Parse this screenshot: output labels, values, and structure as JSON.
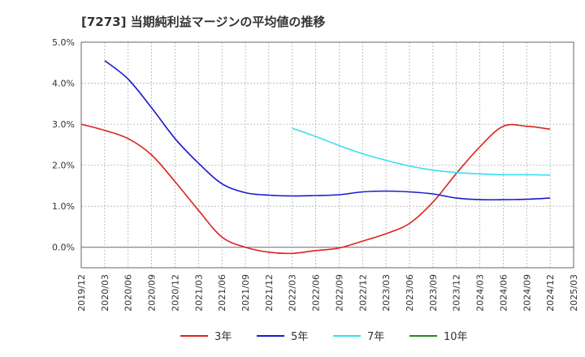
{
  "chart_data": {
    "type": "line",
    "title": "[7273]  当期純利益マージンの平均値の推移",
    "xlabel": "",
    "ylabel": "",
    "ylim": [
      -0.5,
      5.0
    ],
    "yticks": [
      0.0,
      1.0,
      2.0,
      3.0,
      4.0,
      5.0
    ],
    "ytick_labels": [
      "0.0%",
      "1.0%",
      "2.0%",
      "3.0%",
      "4.0%",
      "5.0%"
    ],
    "x_labels": [
      "2019/12",
      "2020/03",
      "2020/06",
      "2020/09",
      "2020/12",
      "2021/03",
      "2021/06",
      "2021/09",
      "2021/12",
      "2022/03",
      "2022/06",
      "2022/09",
      "2022/12",
      "2023/03",
      "2023/06",
      "2023/09",
      "2023/12",
      "2024/03",
      "2024/06",
      "2024/09",
      "2024/12",
      "2025/03"
    ],
    "grid": true,
    "legend_position": "bottom",
    "series": [
      {
        "name": "3年",
        "color": "#dd2222",
        "values": [
          3.0,
          2.85,
          2.65,
          2.25,
          1.6,
          0.9,
          0.25,
          0.0,
          -0.12,
          -0.15,
          -0.08,
          -0.02,
          0.15,
          0.33,
          0.58,
          1.1,
          1.8,
          2.45,
          2.95,
          2.95,
          2.88,
          null
        ]
      },
      {
        "name": "5年",
        "color": "#1a1acc",
        "values": [
          null,
          4.55,
          4.1,
          3.4,
          2.65,
          2.05,
          1.55,
          1.33,
          1.27,
          1.25,
          1.26,
          1.28,
          1.35,
          1.37,
          1.35,
          1.3,
          1.2,
          1.16,
          1.16,
          1.17,
          1.2,
          null
        ]
      },
      {
        "name": "7年",
        "color": "#33e0ee",
        "values": [
          null,
          null,
          null,
          null,
          null,
          null,
          null,
          null,
          null,
          2.9,
          2.7,
          2.48,
          2.28,
          2.12,
          1.98,
          1.88,
          1.82,
          1.79,
          1.77,
          1.77,
          1.76,
          null
        ]
      },
      {
        "name": "10年",
        "color": "#228822",
        "values": [
          null,
          null,
          null,
          null,
          null,
          null,
          null,
          null,
          null,
          null,
          null,
          null,
          null,
          null,
          null,
          null,
          null,
          null,
          null,
          null,
          null,
          null
        ]
      }
    ]
  }
}
